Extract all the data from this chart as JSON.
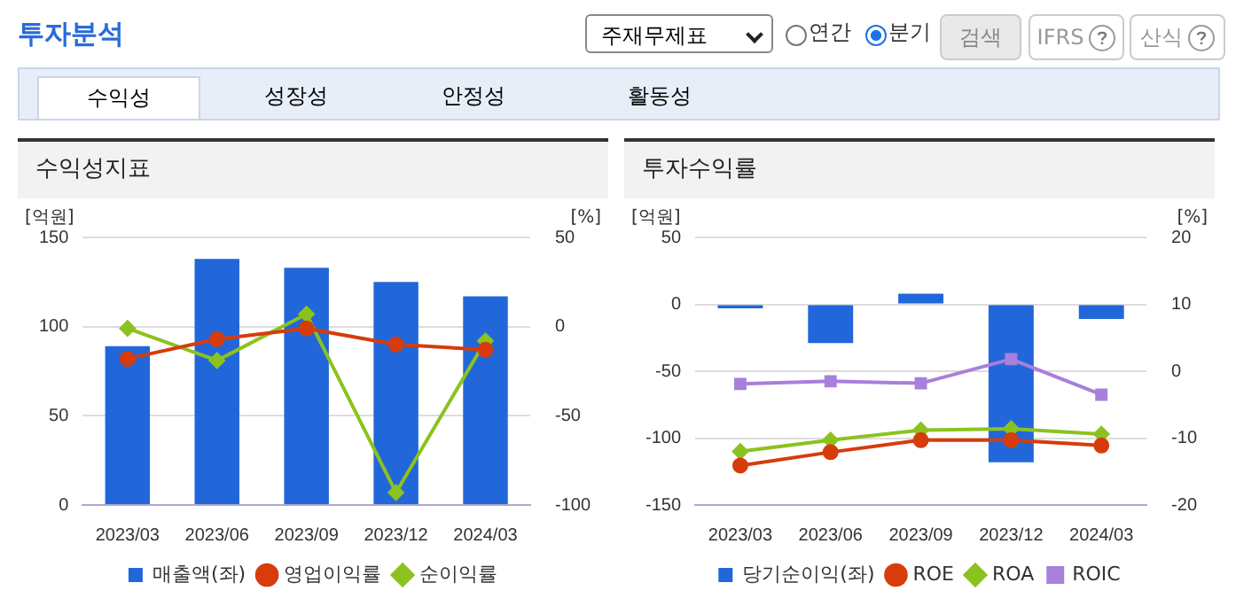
{
  "chart_data": [
    {
      "type": "other",
      "annotations": [
        "투자분석",
        "주재무제표",
        "연간",
        "분기",
        "검색",
        "IFRS",
        "산식",
        "수익성",
        "성장성",
        "안정성",
        "활동성"
      ]
    },
    {
      "type": "bar",
      "title": "수익성지표",
      "ylabel": "[억원]",
      "y2label": "[%]",
      "categories": [
        "2023/03",
        "2023/06",
        "2023/09",
        "2023/12",
        "2024/03"
      ],
      "series": [
        {
          "name": "매출액(좌)",
          "type": "bar",
          "color": "#2167d9",
          "values": [
            89,
            138,
            133,
            125,
            117
          ]
        },
        {
          "name": "영업이익률",
          "type": "line",
          "axis": "y2",
          "marker": "circle",
          "color": "#d63c0c",
          "values": [
            -18,
            -7,
            -1,
            -10,
            -13
          ]
        },
        {
          "name": "순이익률",
          "type": "line",
          "axis": "y2",
          "marker": "diamond",
          "color": "#8cc21f",
          "values": [
            -1,
            -19,
            7,
            -93,
            -8
          ]
        }
      ],
      "ylim": [
        0,
        150
      ],
      "yticks": [
        0,
        50,
        100,
        150
      ],
      "y2lim": [
        -100,
        50
      ],
      "y2ticks": [
        -100,
        -50,
        0,
        50
      ],
      "grid": "y",
      "legend": "bottom"
    },
    {
      "type": "bar",
      "title": "투자수익률",
      "ylabel": "[억원]",
      "y2label": "[%]",
      "categories": [
        "2023/03",
        "2023/06",
        "2023/09",
        "2023/12",
        "2024/03"
      ],
      "series": [
        {
          "name": "당기순이익(좌)",
          "type": "bar",
          "color": "#2167d9",
          "values": [
            -3,
            -29,
            8,
            -118,
            -11
          ]
        },
        {
          "name": "ROE",
          "type": "line",
          "axis": "y2",
          "marker": "circle",
          "color": "#d63c0c",
          "values": [
            -14.1,
            -12.1,
            -10.3,
            -10.3,
            -11.1
          ]
        },
        {
          "name": "ROA",
          "type": "line",
          "axis": "y2",
          "marker": "diamond",
          "color": "#8cc21f",
          "values": [
            -12,
            -10.3,
            -8.8,
            -8.6,
            -9.4
          ]
        },
        {
          "name": "ROIC",
          "type": "line",
          "axis": "y2",
          "marker": "square",
          "color": "#a97fdc",
          "values": [
            -1.9,
            -1.5,
            -1.8,
            1.8,
            -3.5
          ]
        }
      ],
      "ylim": [
        -150,
        50
      ],
      "yticks": [
        -150,
        -100,
        -50,
        0,
        50
      ],
      "y2lim": [
        -20,
        20
      ],
      "y2ticks": [
        -20,
        -10,
        0,
        10,
        20
      ],
      "grid": "y",
      "legend": "bottom"
    }
  ]
}
